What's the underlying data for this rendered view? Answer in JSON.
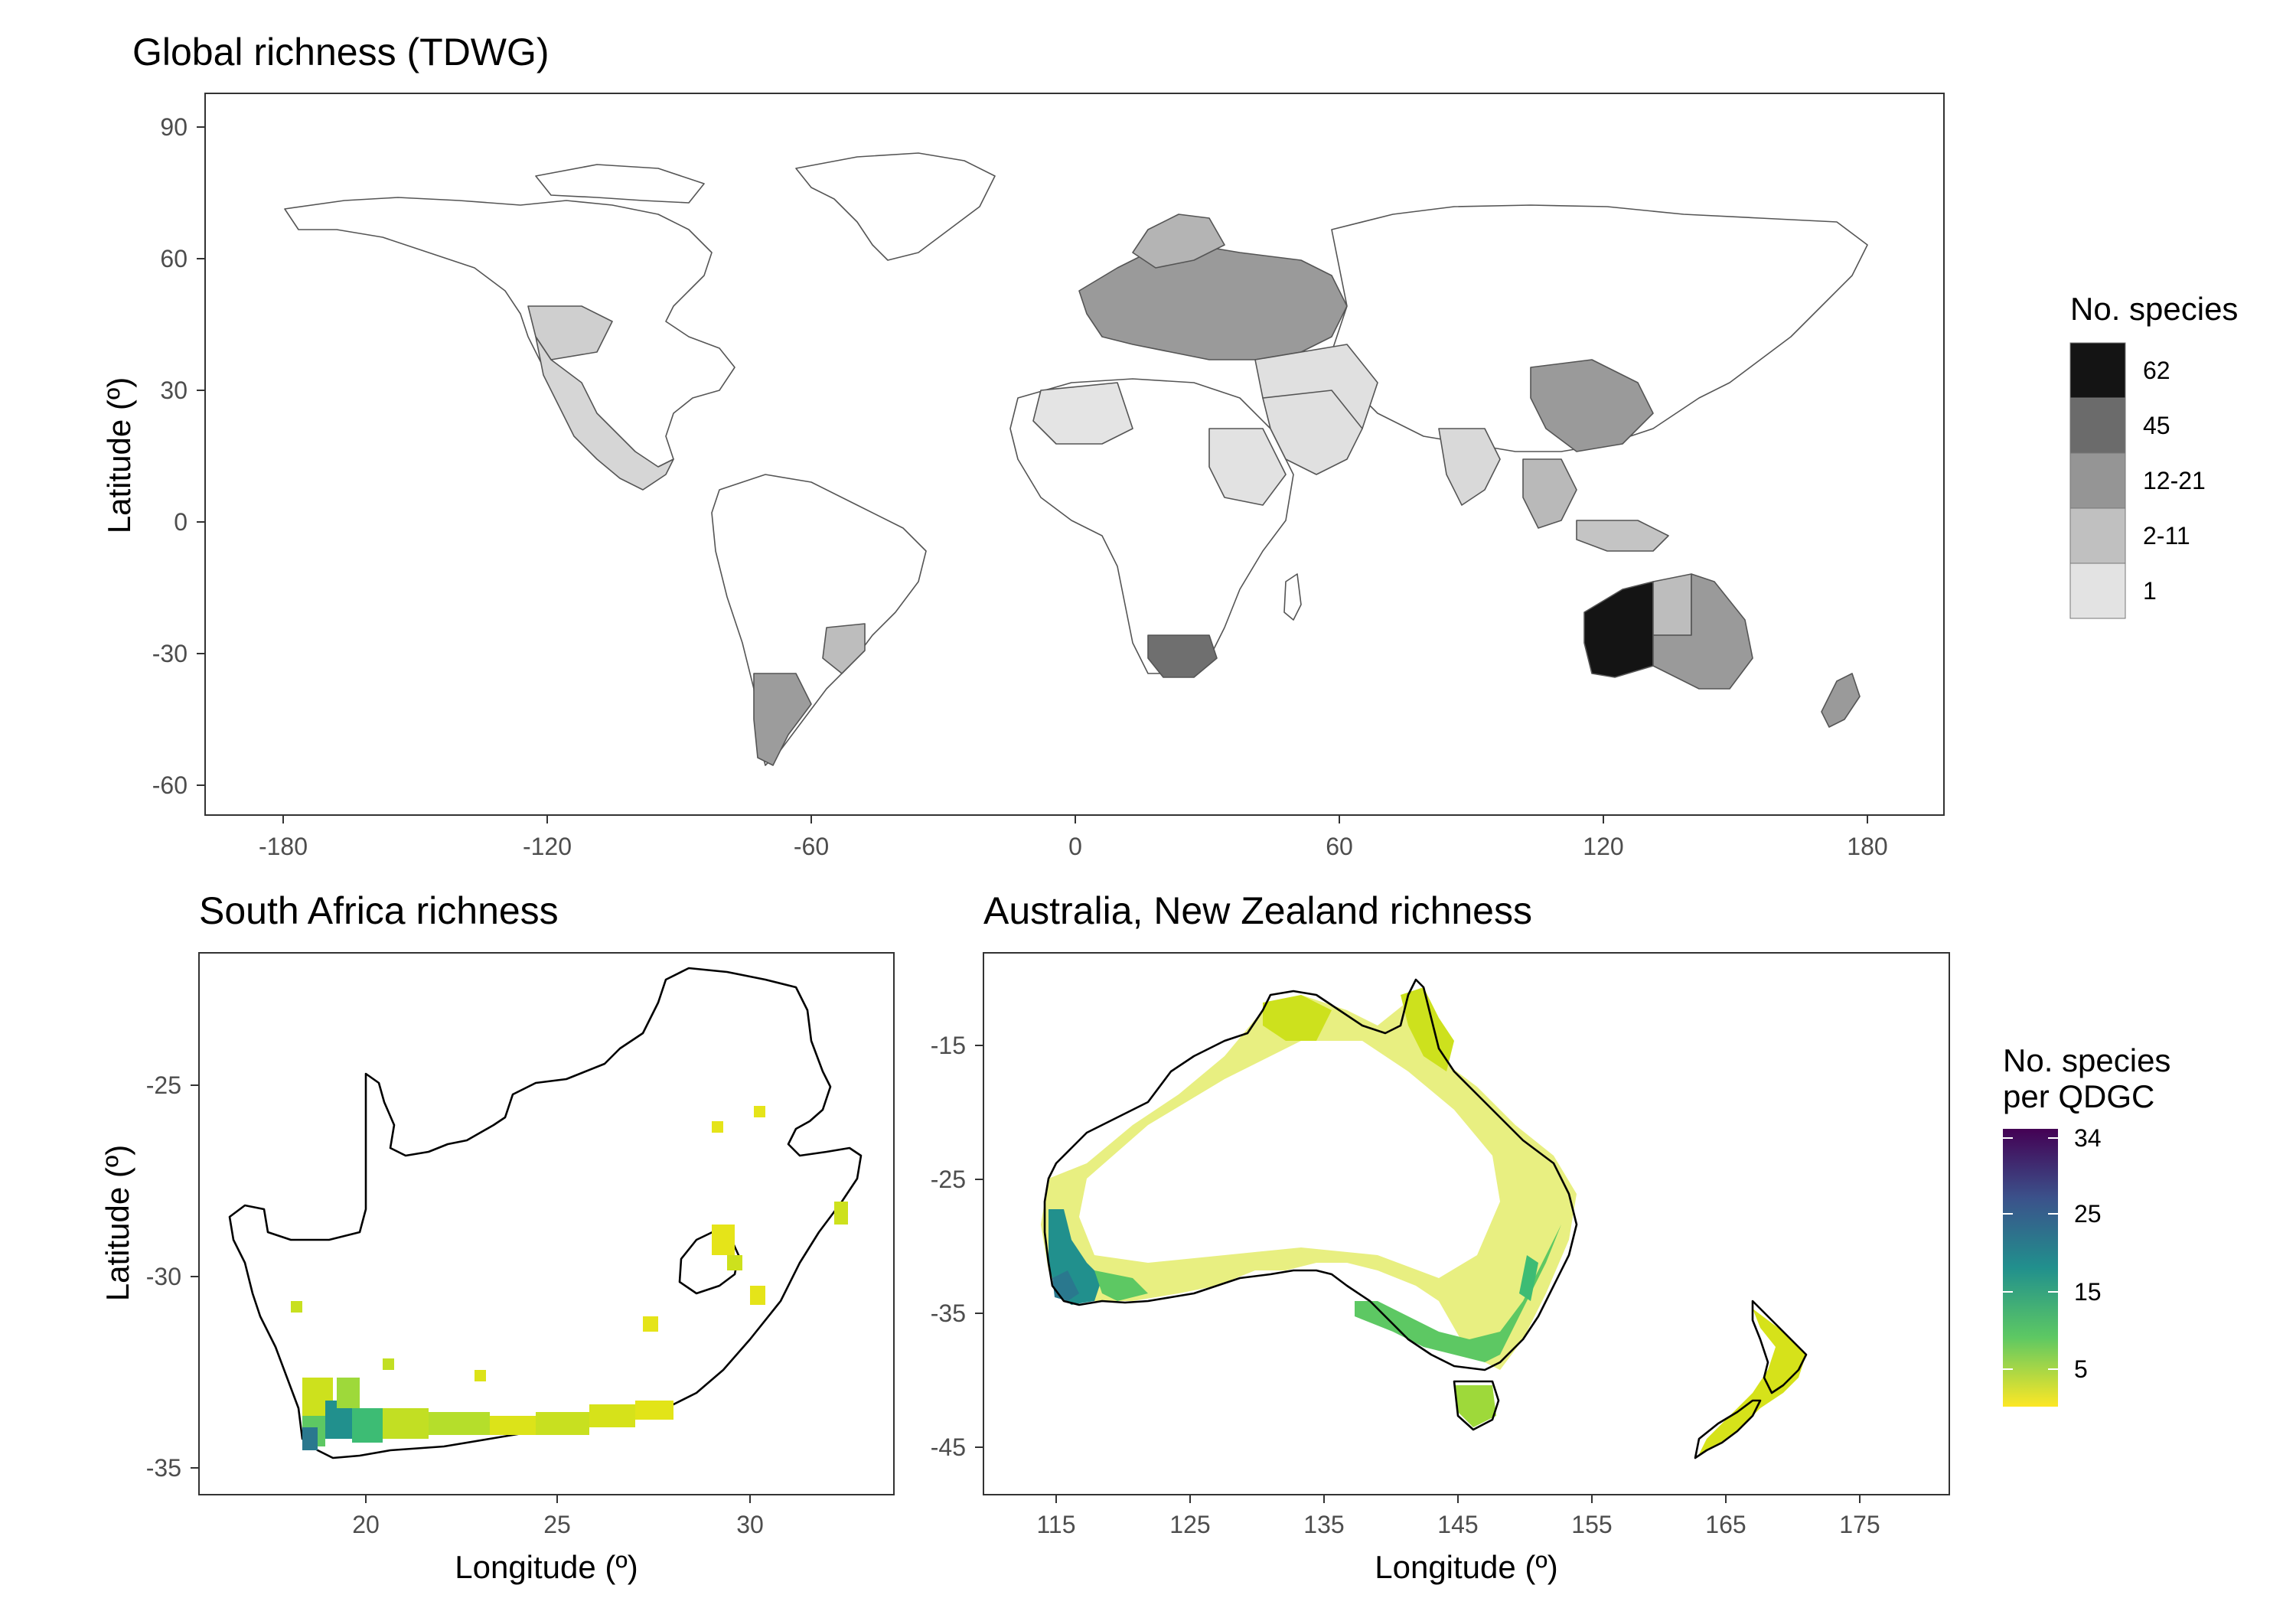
{
  "global_map": {
    "title": "Global richness (TDWG)",
    "y_axis_label": "Latitude (º)",
    "x_ticks": [
      "-180",
      "-120",
      "-60",
      "0",
      "60",
      "120",
      "180"
    ],
    "y_ticks": [
      "90",
      "60",
      "30",
      "0",
      "-30",
      "-60"
    ],
    "legend": {
      "title": "No. species",
      "items": [
        {
          "label": "62",
          "color": "#141414"
        },
        {
          "label": "45",
          "color": "#6b6b6b"
        },
        {
          "label": "12-21",
          "color": "#959595"
        },
        {
          "label": "2-11",
          "color": "#c0c0c0"
        },
        {
          "label": "1",
          "color": "#e3e3e3"
        }
      ]
    }
  },
  "south_africa_map": {
    "title": "South Africa richness",
    "x_axis_label": "Longitude (º)",
    "y_axis_label": "Latitude (º)",
    "x_ticks": [
      "20",
      "25",
      "30"
    ],
    "y_ticks": [
      "-25",
      "-30",
      "-35"
    ]
  },
  "australia_nz_map": {
    "title": "Australia, New Zealand richness",
    "x_axis_label": "Longitude (º)",
    "x_ticks": [
      "115",
      "125",
      "135",
      "145",
      "155",
      "165",
      "175"
    ],
    "y_ticks": [
      "-15",
      "-25",
      "-35",
      "-45"
    ],
    "legend": {
      "title_line1": "No. species",
      "title_line2": "per QDGC",
      "ticks": [
        "34",
        "25",
        "15",
        "5"
      ],
      "gradient_colors": [
        "#440154",
        "#3b528b",
        "#21908d",
        "#5dc863",
        "#fde725"
      ]
    }
  }
}
